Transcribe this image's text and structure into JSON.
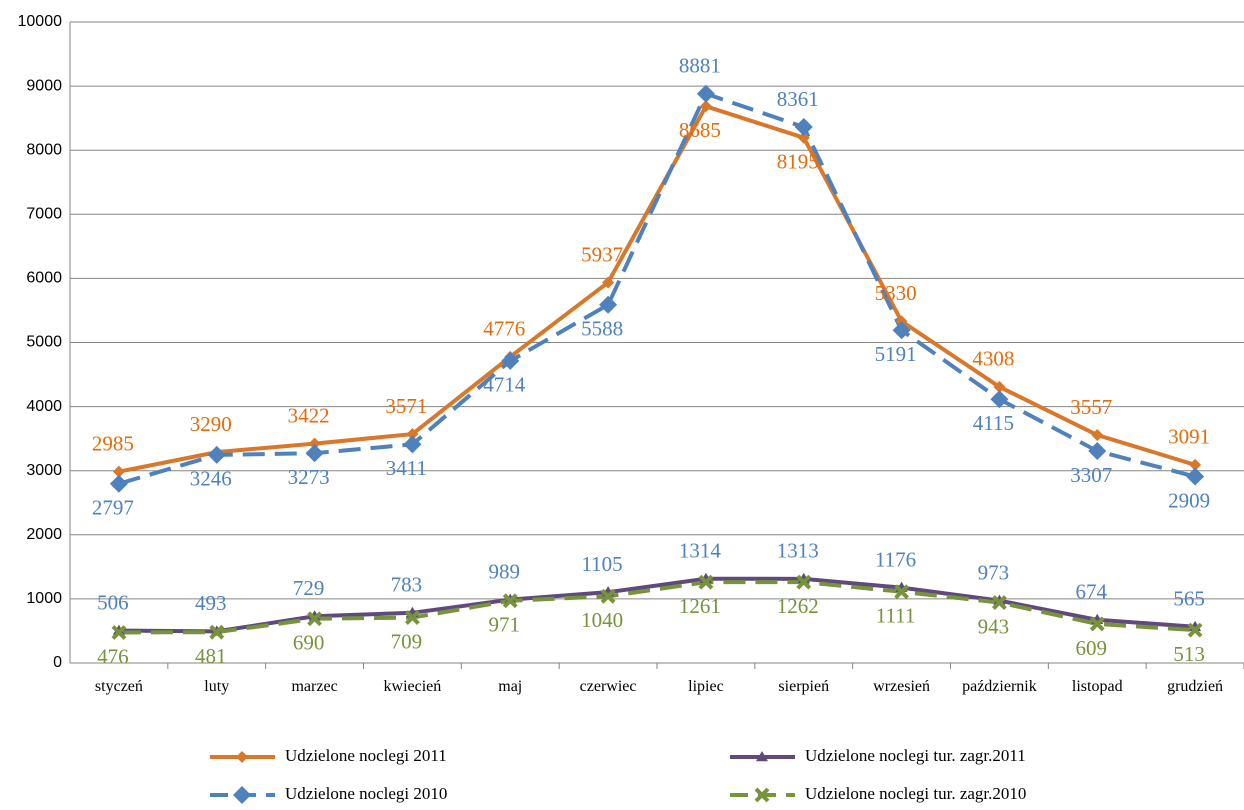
{
  "chart_data": {
    "type": "line",
    "categories": [
      "styczeń",
      "luty",
      "marzec",
      "kwiecień",
      "maj",
      "czerwiec",
      "lipiec",
      "sierpień",
      "wrzesień",
      "październik",
      "listopad",
      "grudzień"
    ],
    "ylim": [
      0,
      10000
    ],
    "yticks": [
      0,
      1000,
      2000,
      3000,
      4000,
      5000,
      6000,
      7000,
      8000,
      9000,
      10000
    ],
    "grid": true,
    "legend": "bottom",
    "series": [
      {
        "name": "Udzielone noclegi 2011",
        "color": "#D9772B",
        "label_color": "#E46C0A",
        "dashed": false,
        "marker": "diamond",
        "values": [
          2985,
          3290,
          3422,
          3571,
          4776,
          5937,
          8685,
          8195,
          5330,
          4308,
          3557,
          3091
        ]
      },
      {
        "name": "Udzielone noclegi 2010",
        "color": "#4F81BD",
        "label_color": "#4F81BD",
        "dashed": true,
        "marker": "diamond",
        "values": [
          2797,
          3246,
          3273,
          3411,
          4714,
          5588,
          8881,
          8361,
          5191,
          4115,
          3307,
          2909
        ]
      },
      {
        "name": "Udzielone noclegi tur. zagr.2011",
        "color": "#604A7B",
        "label_color": "#4F81BD",
        "dashed": false,
        "marker": "triangle",
        "values": [
          506,
          493,
          729,
          783,
          989,
          1105,
          1314,
          1313,
          1176,
          973,
          674,
          565
        ]
      },
      {
        "name": "Udzielone noclegi tur. zagr.2010",
        "color": "#77933C",
        "label_color": "#77933C",
        "dashed": true,
        "marker": "x",
        "values": [
          476,
          481,
          690,
          709,
          971,
          1040,
          1261,
          1262,
          1111,
          943,
          609,
          513
        ]
      }
    ]
  }
}
